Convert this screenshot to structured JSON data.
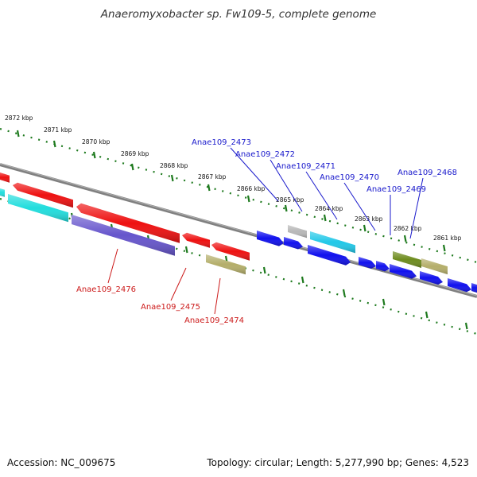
{
  "title": "Anaeromyxobacter sp. Fw109-5, complete genome",
  "footer": {
    "accession": "Accession: NC_009675",
    "topology": "Topology: circular; Length: 5,277,990 bp; Genes: 4,523"
  },
  "colors": {
    "backbone": "#808080",
    "ruler": "#1e7a1e",
    "forward_label": "#1a1acc",
    "reverse_label": "#cc1a1a"
  },
  "ruler": {
    "unit": "kbp",
    "ticks": [
      {
        "kbp": 2872,
        "label": "2872 kbp"
      },
      {
        "kbp": 2871,
        "label": "2871 kbp"
      },
      {
        "kbp": 2870,
        "label": "2870 kbp"
      },
      {
        "kbp": 2869,
        "label": "2869 kbp"
      },
      {
        "kbp": 2868,
        "label": "2868 kbp"
      },
      {
        "kbp": 2867,
        "label": "2867 kbp"
      },
      {
        "kbp": 2866,
        "label": "2866 kbp"
      },
      {
        "kbp": 2865,
        "label": "2865 kbp"
      },
      {
        "kbp": 2864,
        "label": "2864 kbp"
      },
      {
        "kbp": 2863,
        "label": "2863 kbp"
      },
      {
        "kbp": 2862,
        "label": "2862 kbp"
      },
      {
        "kbp": 2861,
        "label": "2861 kbp"
      }
    ]
  },
  "gene_labels": [
    {
      "name": "Anae109_2473",
      "strand": "forward"
    },
    {
      "name": "Anae109_2472",
      "strand": "forward"
    },
    {
      "name": "Anae109_2471",
      "strand": "forward"
    },
    {
      "name": "Anae109_2470",
      "strand": "forward"
    },
    {
      "name": "Anae109_2469",
      "strand": "forward"
    },
    {
      "name": "Anae109_2468",
      "strand": "forward"
    },
    {
      "name": "Anae109_2476",
      "strand": "reverse"
    },
    {
      "name": "Anae109_2475",
      "strand": "reverse"
    },
    {
      "name": "Anae109_2474",
      "strand": "reverse"
    }
  ],
  "features": [
    {
      "name": "red-gene-a",
      "color": "#ee1111"
    },
    {
      "name": "red-gene-b",
      "color": "#ee1111"
    },
    {
      "name": "red-gene-c",
      "color": "#ee1111"
    },
    {
      "name": "red-gene-d",
      "color": "#ee1111"
    },
    {
      "name": "red-gene-e",
      "color": "#ee1111"
    },
    {
      "name": "cyan-gene-a",
      "color": "#22dddd"
    },
    {
      "name": "cyan-gene-b",
      "color": "#22dddd"
    },
    {
      "name": "cyan-gene-c",
      "color": "#22c8e8"
    },
    {
      "name": "purple-gene",
      "color": "#6655cc"
    },
    {
      "name": "khaki-gene-a",
      "color": "#b4ae6a"
    },
    {
      "name": "khaki-gene-b",
      "color": "#b4ae6a"
    },
    {
      "name": "grey-gene",
      "color": "#b8b8b8"
    },
    {
      "name": "olive-gene",
      "color": "#6e8c1e"
    },
    {
      "name": "blue-gene-a",
      "color": "#1111ee"
    },
    {
      "name": "blue-gene-b",
      "color": "#1111ee"
    },
    {
      "name": "blue-gene-c",
      "color": "#1111ee"
    },
    {
      "name": "blue-gene-d",
      "color": "#1111ee"
    },
    {
      "name": "blue-gene-e",
      "color": "#1111ee"
    },
    {
      "name": "blue-gene-f",
      "color": "#1111ee"
    },
    {
      "name": "blue-gene-g",
      "color": "#1111ee"
    },
    {
      "name": "blue-gene-h",
      "color": "#1111ee"
    },
    {
      "name": "blue-gene-i",
      "color": "#1111ee"
    }
  ]
}
